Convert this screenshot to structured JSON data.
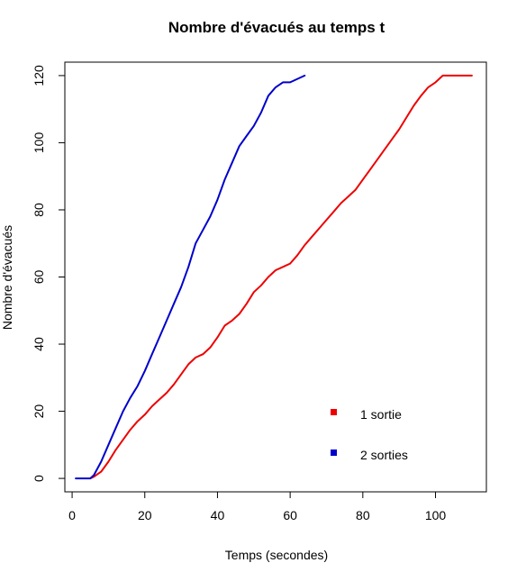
{
  "chart_data": {
    "type": "line",
    "title": "Nombre d'évacués au temps t",
    "xlabel": "Temps (secondes)",
    "ylabel": "Nombre d'évacués",
    "xlim": [
      -2,
      114
    ],
    "ylim": [
      -4,
      124
    ],
    "xticks": [
      0,
      20,
      40,
      60,
      80,
      100
    ],
    "yticks": [
      0,
      20,
      40,
      60,
      80,
      100,
      120
    ],
    "xtick_labels": [
      "0",
      "20",
      "40",
      "60",
      "80",
      "100"
    ],
    "ytick_labels": [
      "0",
      "20",
      "40",
      "60",
      "80",
      "100",
      "120"
    ],
    "grid": false,
    "legend_placement": "bottom-right",
    "series": [
      {
        "name": "1 sortie",
        "color": "#ee0000",
        "x": [
          5,
          6,
          8,
          10,
          12,
          14,
          16,
          18,
          20,
          22,
          24,
          26,
          28,
          30,
          32,
          34,
          36,
          38,
          40,
          42,
          44,
          46,
          48,
          50,
          52,
          54,
          56,
          58,
          60,
          62,
          64,
          66,
          68,
          70,
          72,
          74,
          76,
          78,
          80,
          82,
          84,
          86,
          88,
          90,
          92,
          94,
          96,
          98,
          100,
          102,
          104,
          106,
          108,
          110
        ],
        "y": [
          0,
          0.5,
          2,
          5,
          8.5,
          11.5,
          14.5,
          17,
          19,
          21.5,
          23.5,
          25.5,
          28,
          31,
          34,
          36,
          37,
          39,
          42,
          45.5,
          47,
          49,
          52,
          55.5,
          57.5,
          60,
          62,
          63,
          64,
          66.5,
          69.5,
          72,
          74.5,
          77,
          79.5,
          82,
          84,
          86,
          89,
          92,
          95,
          98,
          101,
          104,
          107.5,
          111,
          114,
          116.5,
          118,
          120,
          120,
          120,
          120,
          120
        ]
      },
      {
        "name": "2 sorties",
        "color": "#0000cc",
        "x": [
          1,
          3,
          5,
          6,
          8,
          10,
          12,
          14,
          16,
          18,
          20,
          22,
          24,
          26,
          28,
          30,
          32,
          34,
          36,
          38,
          40,
          42,
          44,
          46,
          48,
          50,
          52,
          54,
          56,
          58,
          60,
          62,
          64
        ],
        "y": [
          0,
          0,
          0,
          1,
          5,
          10,
          15,
          20,
          24,
          27.5,
          32,
          37,
          42,
          47,
          52,
          57,
          63,
          70,
          74,
          78,
          83,
          89,
          94,
          99,
          102,
          105,
          109,
          114,
          116.5,
          118,
          118,
          119,
          120
        ]
      }
    ]
  }
}
